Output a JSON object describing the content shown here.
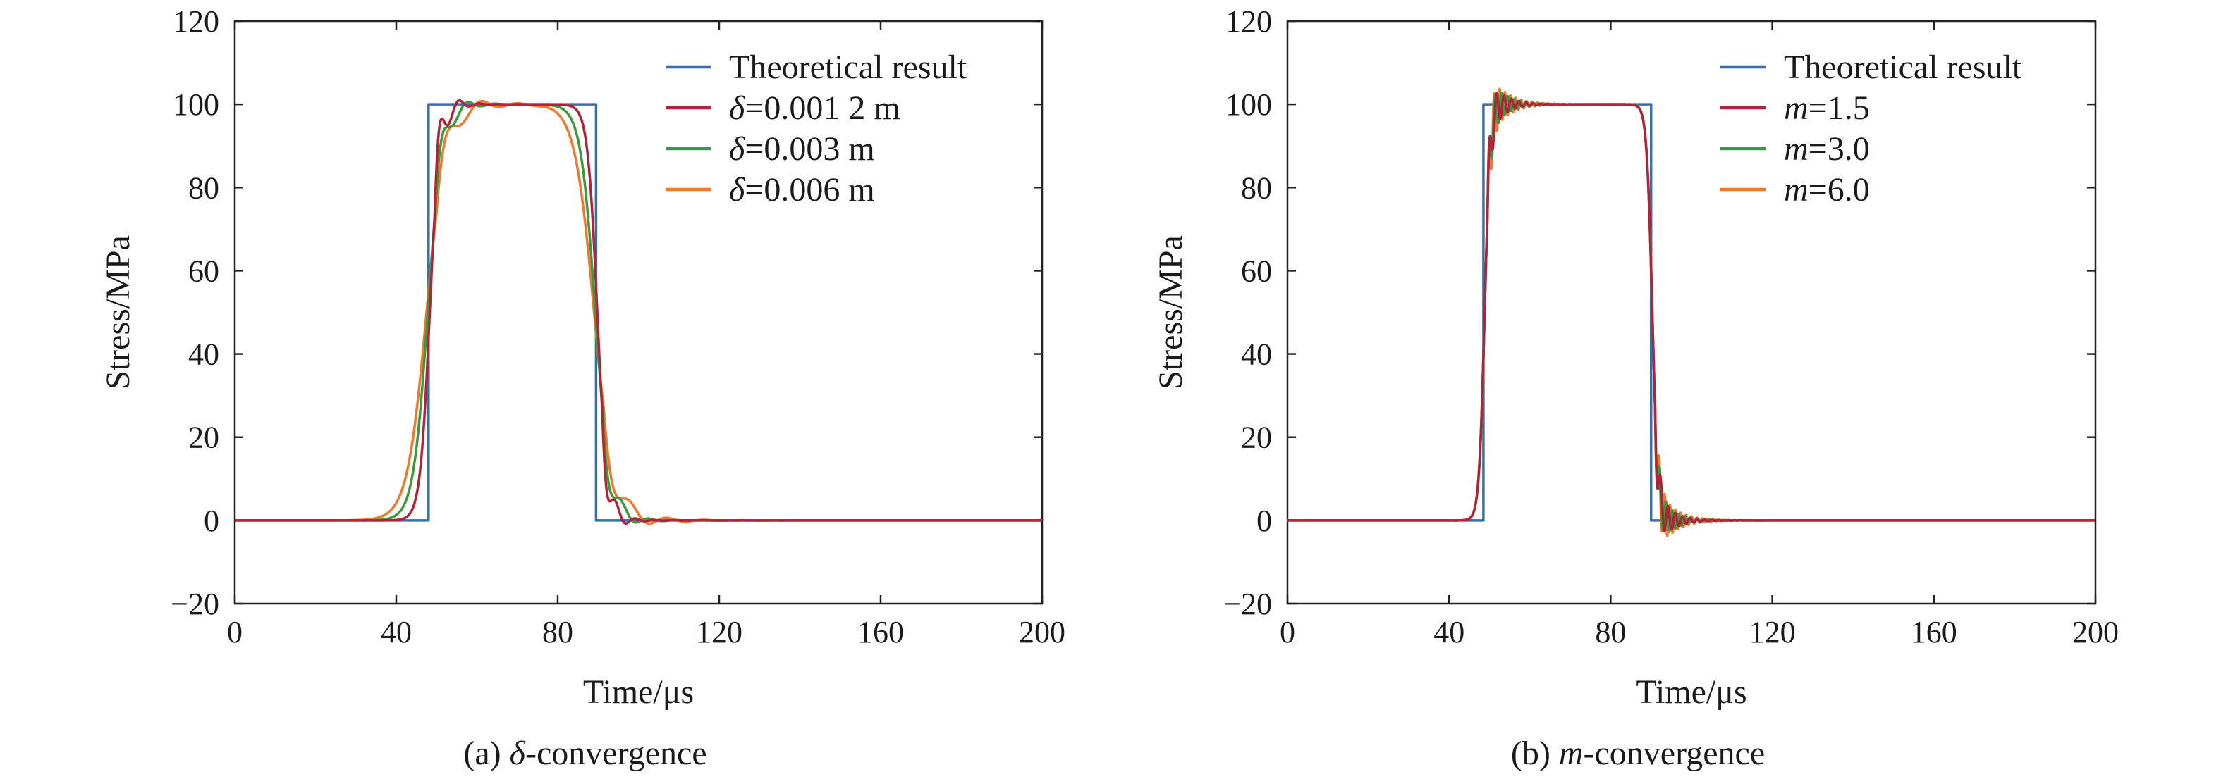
{
  "colors": {
    "theory": "#3a6ea5",
    "red": "#b0243a",
    "green": "#3c9a3c",
    "orange": "#ef7a2d"
  },
  "chart_data": [
    {
      "type": "line",
      "caption": "(a) δ-convergence",
      "caption_parts": {
        "pre": "(a) ",
        "sym": "δ",
        "post": "-convergence"
      },
      "xlabel": "Time/μs",
      "ylabel": "Stress/MPa",
      "xlim": [
        0,
        200
      ],
      "ylim": [
        -20,
        120
      ],
      "xticks": [
        "0",
        "40",
        "80",
        "120",
        "160",
        "200"
      ],
      "yticks": [
        "−20",
        "0",
        "20",
        "40",
        "60",
        "80",
        "100",
        "120"
      ],
      "legend_position": "top-right",
      "grid": false,
      "series": [
        {
          "name": "Theoretical result",
          "sym": "",
          "rest": "Theoretical result",
          "color": "#3a6ea5",
          "model": {
            "kind": "step",
            "t1": 48,
            "t2": 89.5,
            "amp": 100
          }
        },
        {
          "name": "δ=0.001 2 m",
          "sym": "δ",
          "rest": "=0.001 2 m",
          "color": "#b0243a",
          "model": {
            "kind": "smooth",
            "t1": 48.3,
            "t2": 89.8,
            "w": 1.2,
            "a1": 10,
            "f1": 0.4,
            "d1": 0.35,
            "a2": 8,
            "f2": 0.42,
            "d2": 0.35
          }
        },
        {
          "name": "δ=0.003 m",
          "sym": "δ",
          "rest": "=0.003 m",
          "color": "#3c9a3c",
          "model": {
            "kind": "smooth",
            "t1": 47.8,
            "t2": 89.3,
            "w": 1.8,
            "a1": 7,
            "f1": 0.3,
            "d1": 0.25,
            "a2": 7,
            "f2": 0.3,
            "d2": 0.25
          }
        },
        {
          "name": "δ=0.006 m",
          "sym": "δ",
          "rest": "=0.006 m",
          "color": "#ef7a2d",
          "model": {
            "kind": "smooth",
            "t1": 47.5,
            "t2": 89.0,
            "w": 2.4,
            "a1": 6,
            "f1": 0.22,
            "d1": 0.15,
            "a2": 6,
            "f2": 0.22,
            "d2": 0.15
          }
        }
      ]
    },
    {
      "type": "line",
      "caption": "(b) m-convergence",
      "caption_parts": {
        "pre": "(b) ",
        "sym": "m",
        "post": "-convergence"
      },
      "xlabel": "Time/μs",
      "ylabel": "Stress/MPa",
      "xlim": [
        0,
        200
      ],
      "ylim": [
        -20,
        120
      ],
      "xticks": [
        "0",
        "40",
        "80",
        "120",
        "160",
        "200"
      ],
      "yticks": [
        "−20",
        "0",
        "20",
        "40",
        "60",
        "80",
        "100",
        "120"
      ],
      "legend_position": "top-right",
      "grid": false,
      "series": [
        {
          "name": "Theoretical result",
          "sym": "",
          "rest": "Theoretical result",
          "color": "#3a6ea5",
          "model": {
            "kind": "step",
            "t1": 48.5,
            "t2": 90,
            "amp": 100
          }
        },
        {
          "name": "m=1.5",
          "sym": "m",
          "rest": "=1.5",
          "color": "#b0243a",
          "model": {
            "kind": "smooth",
            "t1": 48.8,
            "t2": 90.3,
            "w": 0.7,
            "a1": 8,
            "f1": 1.1,
            "d1": 0.3,
            "a2": 8,
            "f2": 1.1,
            "d2": 0.3
          }
        },
        {
          "name": "m=3.0",
          "sym": "m",
          "rest": "=3.0",
          "color": "#3c9a3c",
          "model": {
            "kind": "smooth",
            "t1": 48.8,
            "t2": 90.3,
            "w": 0.7,
            "a1": 8,
            "f1": 1.3,
            "d1": 0.28,
            "a2": 8,
            "f2": 1.3,
            "d2": 0.28
          }
        },
        {
          "name": "m=6.0",
          "sym": "m",
          "rest": "=6.0",
          "color": "#ef7a2d",
          "model": {
            "kind": "smooth",
            "t1": 48.8,
            "t2": 90.3,
            "w": 0.7,
            "a1": 9,
            "f1": 1.5,
            "d1": 0.25,
            "a2": 9,
            "f2": 1.5,
            "d2": 0.25
          }
        }
      ]
    }
  ]
}
